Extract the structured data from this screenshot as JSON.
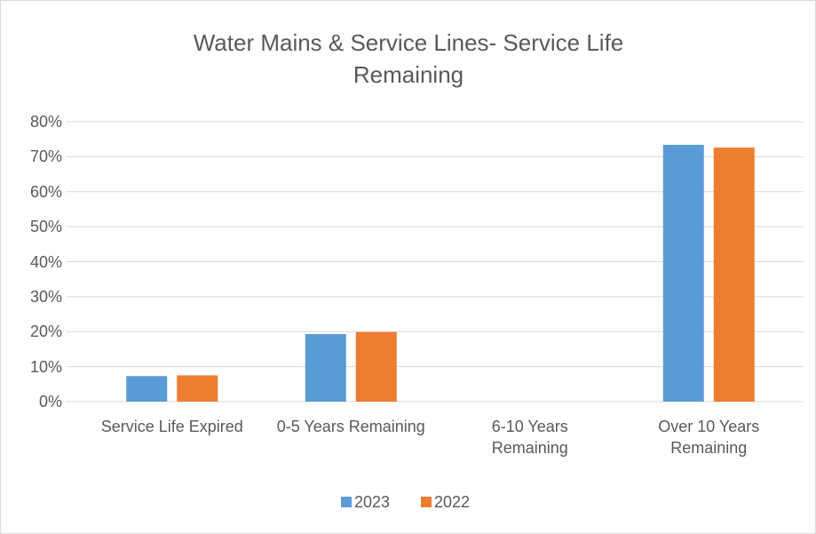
{
  "chart_data": {
    "type": "bar",
    "title": "Water Mains & Service Lines-  Service Life Remaining",
    "categories": [
      "Service Life Expired",
      "0-5 Years Remaining",
      "6-10 Years Remaining",
      "Over 10 Years Remaining"
    ],
    "series": [
      {
        "name": "2023",
        "color": "#5b9bd5",
        "values": [
          7.3,
          19.3,
          0,
          73.4
        ]
      },
      {
        "name": "2022",
        "color": "#ed7d31",
        "values": [
          7.5,
          19.9,
          0,
          72.6
        ]
      }
    ],
    "ylim": [
      0,
      80
    ],
    "yticks": [
      {
        "value": 0,
        "label": "0%"
      },
      {
        "value": 10,
        "label": "10%"
      },
      {
        "value": 20,
        "label": "20%"
      },
      {
        "value": 30,
        "label": "30%"
      },
      {
        "value": 40,
        "label": "40%"
      },
      {
        "value": 50,
        "label": "50%"
      },
      {
        "value": 60,
        "label": "60%"
      },
      {
        "value": 70,
        "label": "70%"
      },
      {
        "value": 80,
        "label": "80%"
      }
    ],
    "grid": true,
    "legend": "bottom"
  }
}
